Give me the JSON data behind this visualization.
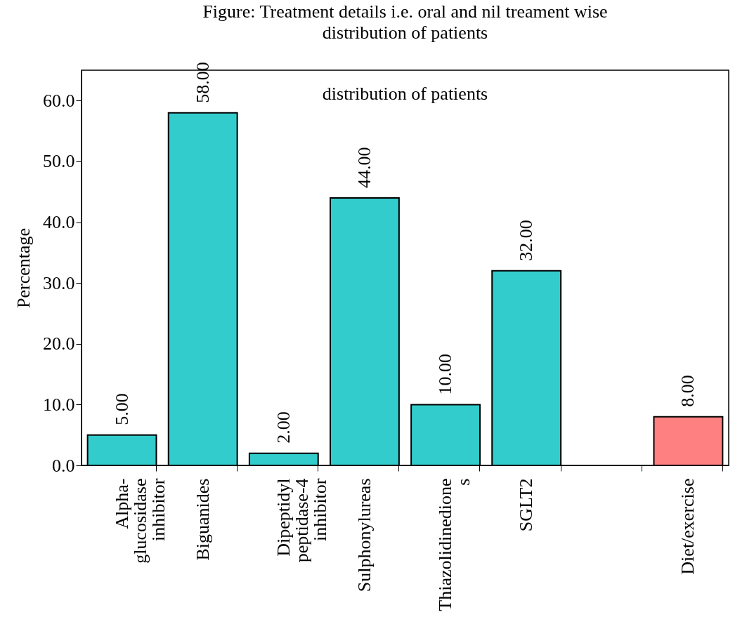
{
  "chart_data": {
    "type": "bar",
    "title": "Figure: Treatment details i.e. oral and nil treament wise\ndistribution of patients",
    "subtitle": "distribution of patients",
    "ylabel": "Percentage",
    "categories": [
      "Alpha-\nglucosidase\ninhibitor",
      "Biguanides",
      "Dipeptidyl\npeptidase-4\ninhibitor",
      "Sulphonylureas",
      "Thiazolidinedione\ns",
      "SGLT2",
      null,
      "Diet/exercise"
    ],
    "values": [
      5,
      58,
      2,
      44,
      10,
      32,
      null,
      8
    ],
    "colors": [
      "#33cccc",
      "#33cccc",
      "#33cccc",
      "#33cccc",
      "#33cccc",
      "#33cccc",
      "#33cccc",
      "#ff8080"
    ],
    "value_labels": [
      "5.00",
      "58.00",
      "2.00",
      "44.00",
      "10.00",
      "32.00",
      null,
      "8.00"
    ],
    "ylim": [
      0,
      65
    ],
    "yticks": [
      {
        "value": 0,
        "label": "0.0"
      },
      {
        "value": 10,
        "label": "10.0"
      },
      {
        "value": 20,
        "label": "20.0"
      },
      {
        "value": 30,
        "label": "30.0"
      },
      {
        "value": 40,
        "label": "40.0"
      },
      {
        "value": 50,
        "label": "50.0"
      },
      {
        "value": 60,
        "label": "60.0"
      }
    ],
    "grid": false
  }
}
